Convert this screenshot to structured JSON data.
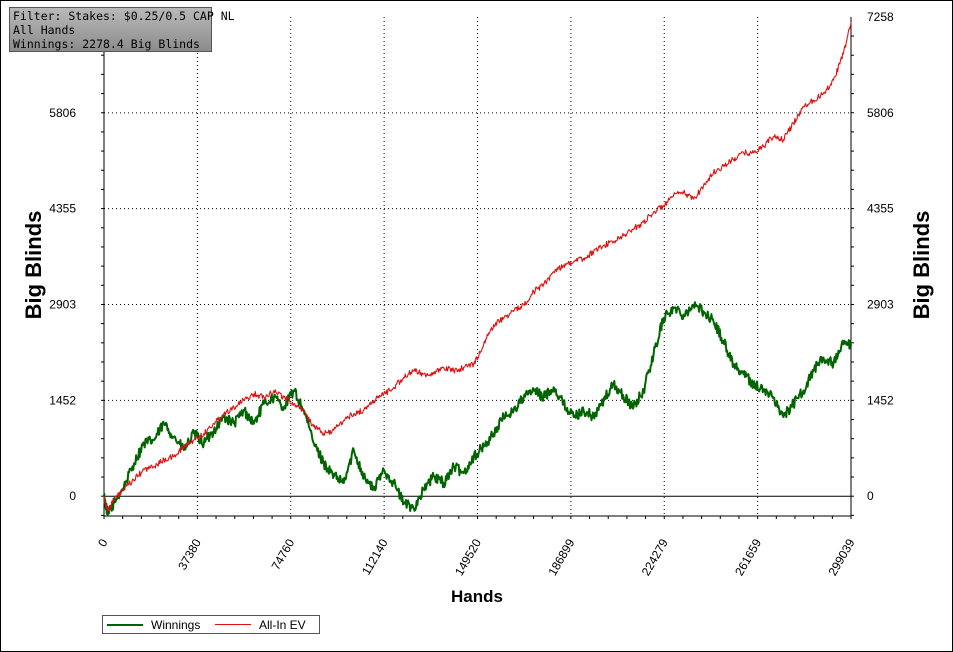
{
  "filter_box": {
    "line1": "Filter: Stakes: $0.25/0.5 CAP NL",
    "line2": "All Hands",
    "line3": "Winnings: 2278.4 Big Blinds"
  },
  "legend": {
    "winnings_label": "Winnings",
    "allin_label": "All-In EV"
  },
  "colors": {
    "winnings": "#006400",
    "allin_ev": "#e01010"
  },
  "chart_data": {
    "type": "line",
    "xlabel": "Hands",
    "ylabel": "Big Blinds",
    "xlim": [
      0,
      299039
    ],
    "ylim": [
      -300,
      7258
    ],
    "x_ticks": [
      0,
      37380,
      74760,
      112140,
      149520,
      186899,
      224279,
      261659,
      299039
    ],
    "y_ticks": [
      0,
      1452,
      2903,
      4355,
      5806,
      7258
    ],
    "grid": true,
    "series": [
      {
        "name": "Winnings",
        "color": "#006400",
        "points": [
          [
            0,
            0
          ],
          [
            1500,
            -280
          ],
          [
            4000,
            -100
          ],
          [
            8000,
            150
          ],
          [
            12000,
            500
          ],
          [
            16000,
            800
          ],
          [
            20000,
            850
          ],
          [
            24000,
            1100
          ],
          [
            28000,
            900
          ],
          [
            32000,
            700
          ],
          [
            36000,
            950
          ],
          [
            40000,
            800
          ],
          [
            44000,
            1000
          ],
          [
            48000,
            1200
          ],
          [
            52000,
            1100
          ],
          [
            56000,
            1300
          ],
          [
            60000,
            1100
          ],
          [
            64000,
            1400
          ],
          [
            68000,
            1500
          ],
          [
            72000,
            1350
          ],
          [
            76000,
            1600
          ],
          [
            80000,
            1300
          ],
          [
            84000,
            800
          ],
          [
            88000,
            500
          ],
          [
            92000,
            300
          ],
          [
            96000,
            200
          ],
          [
            100000,
            700
          ],
          [
            104000,
            300
          ],
          [
            108000,
            100
          ],
          [
            112000,
            400
          ],
          [
            116000,
            200
          ],
          [
            120000,
            -100
          ],
          [
            124000,
            -180
          ],
          [
            128000,
            100
          ],
          [
            132000,
            300
          ],
          [
            136000,
            200
          ],
          [
            140000,
            450
          ],
          [
            144000,
            350
          ],
          [
            148000,
            600
          ],
          [
            152000,
            750
          ],
          [
            156000,
            950
          ],
          [
            160000,
            1200
          ],
          [
            164000,
            1300
          ],
          [
            168000,
            1500
          ],
          [
            172000,
            1600
          ],
          [
            176000,
            1500
          ],
          [
            180000,
            1650
          ],
          [
            184000,
            1400
          ],
          [
            188000,
            1200
          ],
          [
            192000,
            1300
          ],
          [
            196000,
            1200
          ],
          [
            200000,
            1450
          ],
          [
            204000,
            1700
          ],
          [
            208000,
            1500
          ],
          [
            212000,
            1350
          ],
          [
            216000,
            1600
          ],
          [
            220000,
            2150
          ],
          [
            224000,
            2700
          ],
          [
            228000,
            2850
          ],
          [
            232000,
            2750
          ],
          [
            236000,
            2900
          ],
          [
            240000,
            2800
          ],
          [
            244000,
            2650
          ],
          [
            248000,
            2350
          ],
          [
            252000,
            2000
          ],
          [
            256000,
            1850
          ],
          [
            260000,
            1700
          ],
          [
            264000,
            1600
          ],
          [
            268000,
            1500
          ],
          [
            272000,
            1200
          ],
          [
            276000,
            1400
          ],
          [
            280000,
            1600
          ],
          [
            284000,
            1900
          ],
          [
            288000,
            2100
          ],
          [
            292000,
            2000
          ],
          [
            296000,
            2300
          ],
          [
            299039,
            2278
          ]
        ]
      },
      {
        "name": "All-In EV",
        "color": "#e01010",
        "points": [
          [
            0,
            0
          ],
          [
            1500,
            -220
          ],
          [
            4000,
            -50
          ],
          [
            8000,
            100
          ],
          [
            12000,
            250
          ],
          [
            16000,
            400
          ],
          [
            20000,
            450
          ],
          [
            24000,
            550
          ],
          [
            28000,
            600
          ],
          [
            32000,
            750
          ],
          [
            36000,
            850
          ],
          [
            40000,
            950
          ],
          [
            44000,
            1100
          ],
          [
            48000,
            1250
          ],
          [
            52000,
            1350
          ],
          [
            56000,
            1450
          ],
          [
            60000,
            1550
          ],
          [
            64000,
            1500
          ],
          [
            68000,
            1600
          ],
          [
            72000,
            1500
          ],
          [
            76000,
            1400
          ],
          [
            80000,
            1300
          ],
          [
            84000,
            1050
          ],
          [
            88000,
            950
          ],
          [
            92000,
            1000
          ],
          [
            96000,
            1150
          ],
          [
            100000,
            1250
          ],
          [
            104000,
            1300
          ],
          [
            108000,
            1450
          ],
          [
            112000,
            1550
          ],
          [
            116000,
            1650
          ],
          [
            120000,
            1800
          ],
          [
            124000,
            1900
          ],
          [
            128000,
            1850
          ],
          [
            132000,
            1850
          ],
          [
            136000,
            1950
          ],
          [
            140000,
            1900
          ],
          [
            144000,
            1950
          ],
          [
            148000,
            2000
          ],
          [
            152000,
            2300
          ],
          [
            156000,
            2600
          ],
          [
            160000,
            2700
          ],
          [
            164000,
            2800
          ],
          [
            168000,
            2900
          ],
          [
            172000,
            3100
          ],
          [
            176000,
            3200
          ],
          [
            180000,
            3400
          ],
          [
            184000,
            3500
          ],
          [
            188000,
            3550
          ],
          [
            192000,
            3600
          ],
          [
            196000,
            3700
          ],
          [
            200000,
            3800
          ],
          [
            204000,
            3850
          ],
          [
            208000,
            3950
          ],
          [
            212000,
            4050
          ],
          [
            216000,
            4150
          ],
          [
            220000,
            4300
          ],
          [
            224000,
            4400
          ],
          [
            228000,
            4550
          ],
          [
            232000,
            4600
          ],
          [
            236000,
            4500
          ],
          [
            240000,
            4700
          ],
          [
            244000,
            4900
          ],
          [
            248000,
            5000
          ],
          [
            252000,
            5100
          ],
          [
            256000,
            5200
          ],
          [
            260000,
            5200
          ],
          [
            264000,
            5300
          ],
          [
            268000,
            5450
          ],
          [
            272000,
            5400
          ],
          [
            276000,
            5650
          ],
          [
            280000,
            5900
          ],
          [
            284000,
            6000
          ],
          [
            288000,
            6100
          ],
          [
            292000,
            6300
          ],
          [
            296000,
            6700
          ],
          [
            299039,
            7180
          ]
        ]
      }
    ]
  }
}
